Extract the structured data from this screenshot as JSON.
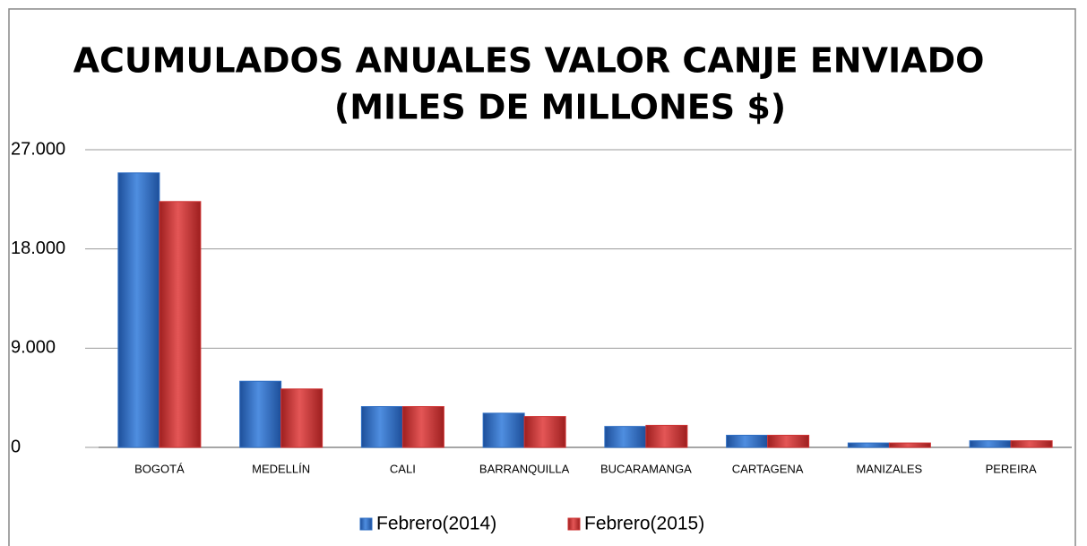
{
  "chart_data": {
    "type": "bar",
    "title": [
      "ACUMULADOS ANUALES  VALOR CANJE ENVIADO",
      "(MILES DE MILLONES $)"
    ],
    "categories": [
      "BOGOTÁ",
      "MEDELLÍN",
      "CALI",
      "BARRANQUILLA",
      "BUCARAMANGA",
      "CARTAGENA",
      "MANIZALES",
      "PEREIRA"
    ],
    "series": [
      {
        "name": "Febrero(2014)",
        "color": "#2f6fc4",
        "values": [
          24900,
          6000,
          3700,
          3100,
          1900,
          1100,
          400,
          600
        ]
      },
      {
        "name": "Febrero(2015)",
        "color": "#cf3434",
        "values": [
          22300,
          5300,
          3700,
          2800,
          2000,
          1100,
          400,
          600
        ]
      }
    ],
    "ylim": [
      0,
      27000
    ],
    "yticks": [
      0,
      {
        "value": 9000,
        "label": "9.000"
      },
      {
        "value": 18000,
        "label": "18.000"
      },
      {
        "value": 27000,
        "label": "27.000"
      }
    ],
    "grid": true,
    "legend": "bottom"
  }
}
